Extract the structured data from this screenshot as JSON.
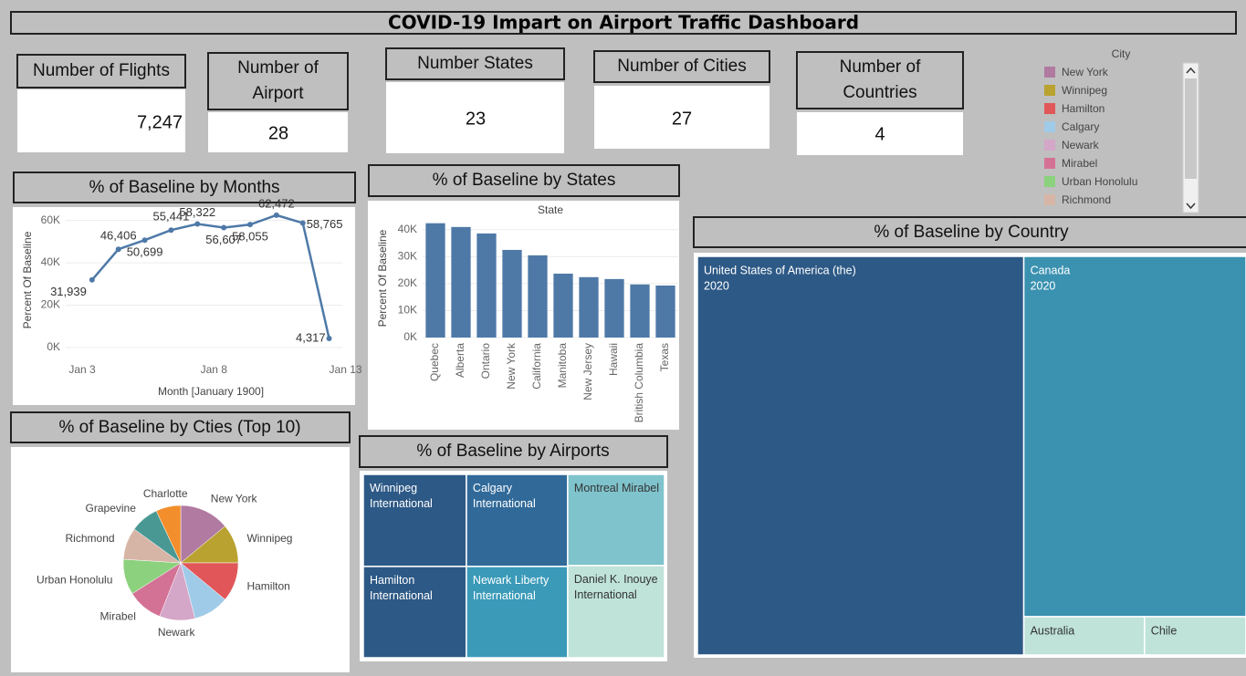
{
  "header": {
    "title": "COVID-19 Impart on Airport Traffic Dashboard"
  },
  "kpis": [
    {
      "label": "Number of Flights",
      "value": "7,247"
    },
    {
      "label": "Number of Airport",
      "value": "28"
    },
    {
      "label": "Number States",
      "value": "23"
    },
    {
      "label": "Number of Cities",
      "value": "27"
    },
    {
      "label": "Number of Countries",
      "value": "4"
    }
  ],
  "chart_data": [
    {
      "type": "line",
      "title": "% of Baseline by Months",
      "x_label": "Month [January 1900]",
      "y_label": "Percent Of Baseline",
      "x": [
        4,
        5,
        6,
        7,
        8,
        9,
        10,
        11,
        12,
        13
      ],
      "values": [
        31939,
        46406,
        50699,
        55441,
        58322,
        56607,
        58055,
        62472,
        58765,
        4317
      ],
      "value_labels": [
        "31,939",
        "46,406",
        "50,699",
        "55,441",
        "58,322",
        "56,607",
        "58,055",
        "62,472",
        "58,765",
        "4,317"
      ],
      "color": "#4e79a7",
      "xlim": [
        3,
        13.5
      ],
      "xticks": [
        {
          "value": 3,
          "label": "Jan 3"
        },
        {
          "value": 8,
          "label": "Jan 8"
        },
        {
          "value": 13,
          "label": "Jan 13"
        }
      ],
      "ylim": [
        0,
        65000
      ],
      "yticks": [
        {
          "value": 0,
          "label": "0K"
        },
        {
          "value": 20000,
          "label": "20K"
        },
        {
          "value": 40000,
          "label": "40K"
        },
        {
          "value": 60000,
          "label": "60K"
        }
      ],
      "grid": true
    },
    {
      "type": "bar",
      "title": "% of Baseline by States",
      "header": "State",
      "y_label": "Percent Of Baseline",
      "categories": [
        "Quebec",
        "Alberta",
        "Ontario",
        "New York",
        "California",
        "Manitoba",
        "New Jersey",
        "Hawaii",
        "British Columbia",
        "Texas"
      ],
      "values": [
        42400,
        41000,
        38600,
        32500,
        30500,
        23700,
        22400,
        21700,
        19700,
        19300
      ],
      "color": "#4e79a7",
      "ylim": [
        0,
        45000
      ],
      "yticks": [
        {
          "value": 0,
          "label": "0K"
        },
        {
          "value": 10000,
          "label": "10K"
        },
        {
          "value": 20000,
          "label": "20K"
        },
        {
          "value": 30000,
          "label": "30K"
        },
        {
          "value": 40000,
          "label": "40K"
        }
      ],
      "grid": true
    },
    {
      "type": "pie",
      "title": "% of Baseline by Cties (Top 10)",
      "legend_title": "City",
      "categories": [
        "New York",
        "Winnipeg",
        "Hamilton",
        "Calgary",
        "Newark",
        "Mirabel",
        "Urban Honolulu",
        "Richmond",
        "Grapevine",
        "Charlotte"
      ],
      "values": [
        14,
        11,
        11,
        10,
        10,
        10,
        10,
        9,
        8,
        7
      ],
      "colors": [
        "#b07aa1",
        "#b9a22f",
        "#e15759",
        "#a0cbe8",
        "#d4a6c8",
        "#d37295",
        "#8cd17d",
        "#d7b5a6",
        "#499894",
        "#f28e2b"
      ],
      "slice_label_skip": [
        3
      ]
    },
    {
      "type": "treemap",
      "title": "% of Baseline by Airports",
      "categories": [
        "Winnipeg International",
        "Hamilton International",
        "Calgary International",
        "Newark Liberty International",
        "Montreal Mirabel",
        "Daniel K. Inouye International"
      ],
      "values": [
        58000,
        57500,
        57000,
        56500,
        54000,
        54500
      ],
      "colors": [
        "#2d5986",
        "#2d5986",
        "#316a99",
        "#3a9ab8",
        "#7fc3cc",
        "#bfe3d9"
      ]
    },
    {
      "type": "treemap",
      "title": "% of Baseline by Country",
      "categories": [
        "United States of America (the)",
        "Canada",
        "Australia",
        "Chile"
      ],
      "sublabels": [
        "2020",
        "2020",
        null,
        null
      ],
      "values": [
        156000,
        96000,
        5544,
        4662
      ],
      "colors": [
        "#2d5986",
        "#3a91b0",
        "#bfe3d9",
        "#bfe3d9"
      ]
    }
  ]
}
